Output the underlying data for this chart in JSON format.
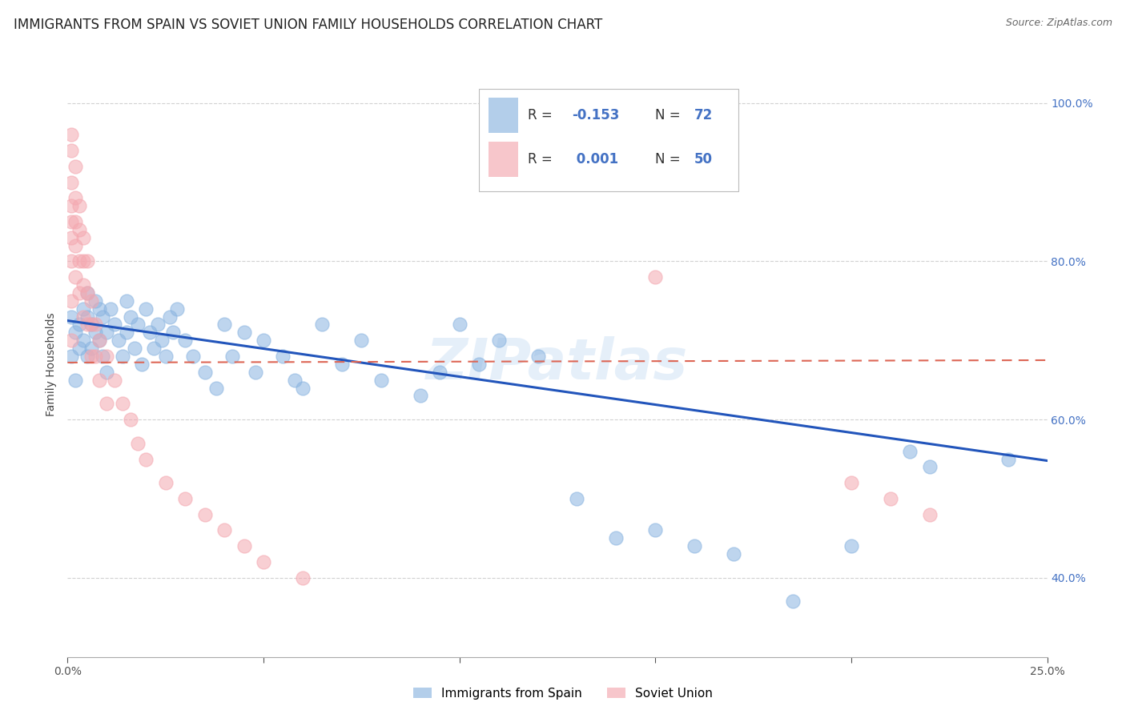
{
  "title": "IMMIGRANTS FROM SPAIN VS SOVIET UNION FAMILY HOUSEHOLDS CORRELATION CHART",
  "source": "Source: ZipAtlas.com",
  "ylabel": "Family Households",
  "xlim": [
    0.0,
    0.25
  ],
  "ylim": [
    0.3,
    1.04
  ],
  "blue_color": "#8ab4e0",
  "pink_color": "#f4a8b0",
  "blue_line_color": "#2255bb",
  "pink_line_color": "#dd6655",
  "background_color": "#ffffff",
  "watermark": "ZIPatlas",
  "title_fontsize": 12,
  "axis_label_fontsize": 10,
  "tick_fontsize": 10,
  "spain_trend_x": [
    0.0,
    0.25
  ],
  "spain_trend_y": [
    0.725,
    0.548
  ],
  "soviet_trend_x": [
    0.0,
    0.25
  ],
  "soviet_trend_y": [
    0.672,
    0.675
  ],
  "spain_x": [
    0.001,
    0.001,
    0.002,
    0.002,
    0.003,
    0.003,
    0.004,
    0.004,
    0.005,
    0.005,
    0.005,
    0.006,
    0.006,
    0.007,
    0.007,
    0.008,
    0.008,
    0.009,
    0.009,
    0.01,
    0.01,
    0.011,
    0.012,
    0.013,
    0.014,
    0.015,
    0.015,
    0.016,
    0.017,
    0.018,
    0.019,
    0.02,
    0.021,
    0.022,
    0.023,
    0.024,
    0.025,
    0.026,
    0.027,
    0.028,
    0.03,
    0.032,
    0.035,
    0.038,
    0.04,
    0.042,
    0.045,
    0.048,
    0.05,
    0.055,
    0.058,
    0.06,
    0.065,
    0.07,
    0.075,
    0.08,
    0.09,
    0.095,
    0.1,
    0.105,
    0.11,
    0.12,
    0.13,
    0.14,
    0.15,
    0.16,
    0.17,
    0.185,
    0.2,
    0.215,
    0.22,
    0.24
  ],
  "spain_y": [
    0.73,
    0.68,
    0.71,
    0.65,
    0.69,
    0.72,
    0.74,
    0.7,
    0.76,
    0.73,
    0.68,
    0.72,
    0.69,
    0.75,
    0.71,
    0.74,
    0.7,
    0.68,
    0.73,
    0.71,
    0.66,
    0.74,
    0.72,
    0.7,
    0.68,
    0.75,
    0.71,
    0.73,
    0.69,
    0.72,
    0.67,
    0.74,
    0.71,
    0.69,
    0.72,
    0.7,
    0.68,
    0.73,
    0.71,
    0.74,
    0.7,
    0.68,
    0.66,
    0.64,
    0.72,
    0.68,
    0.71,
    0.66,
    0.7,
    0.68,
    0.65,
    0.64,
    0.72,
    0.67,
    0.7,
    0.65,
    0.63,
    0.66,
    0.72,
    0.67,
    0.7,
    0.68,
    0.5,
    0.45,
    0.46,
    0.44,
    0.43,
    0.37,
    0.44,
    0.56,
    0.54,
    0.55
  ],
  "soviet_x": [
    0.001,
    0.001,
    0.001,
    0.001,
    0.001,
    0.001,
    0.001,
    0.001,
    0.001,
    0.002,
    0.002,
    0.002,
    0.002,
    0.002,
    0.003,
    0.003,
    0.003,
    0.003,
    0.004,
    0.004,
    0.004,
    0.004,
    0.005,
    0.005,
    0.005,
    0.006,
    0.006,
    0.006,
    0.007,
    0.007,
    0.008,
    0.008,
    0.01,
    0.01,
    0.012,
    0.014,
    0.016,
    0.018,
    0.02,
    0.025,
    0.03,
    0.035,
    0.04,
    0.045,
    0.05,
    0.06,
    0.15,
    0.2,
    0.21,
    0.22
  ],
  "soviet_y": [
    0.96,
    0.94,
    0.9,
    0.87,
    0.85,
    0.83,
    0.8,
    0.75,
    0.7,
    0.92,
    0.88,
    0.85,
    0.82,
    0.78,
    0.87,
    0.84,
    0.8,
    0.76,
    0.83,
    0.8,
    0.77,
    0.73,
    0.8,
    0.76,
    0.72,
    0.75,
    0.72,
    0.68,
    0.72,
    0.68,
    0.7,
    0.65,
    0.68,
    0.62,
    0.65,
    0.62,
    0.6,
    0.57,
    0.55,
    0.52,
    0.5,
    0.48,
    0.46,
    0.44,
    0.42,
    0.4,
    0.78,
    0.52,
    0.5,
    0.48
  ]
}
